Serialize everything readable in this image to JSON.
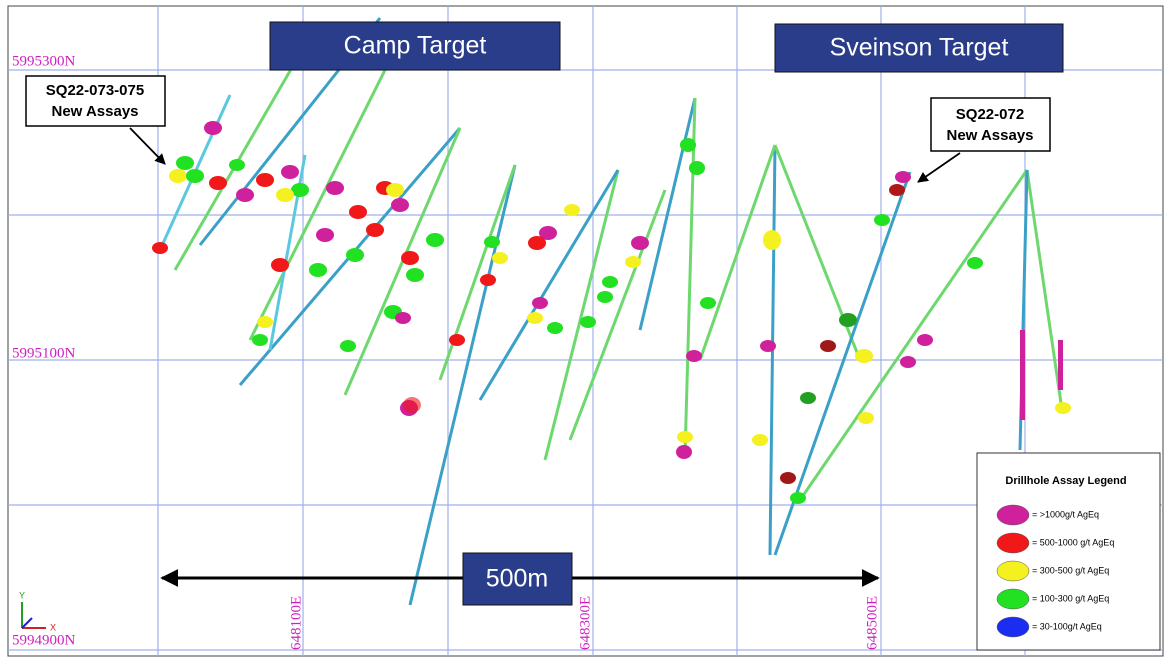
{
  "grid_labels": {
    "northings": [
      "5995300N",
      "5995100N",
      "5994900N"
    ],
    "eastings": [
      "648100E",
      "648300E",
      "648500E"
    ]
  },
  "targets": [
    "Camp Target",
    "Sveinson Target"
  ],
  "callouts": [
    {
      "title": "SQ22-073-075",
      "subtitle": "New Assays"
    },
    {
      "title": "SQ22-072",
      "subtitle": "New Assays"
    }
  ],
  "scale_bar": "500m",
  "axis_labels": [
    "Y",
    "X"
  ],
  "legend": {
    "title": "Drillhole Assay Legend",
    "items": [
      {
        "label": "= >1000g/t AgEq",
        "color": "#d0219d"
      },
      {
        "label": "= 500-1000 g/t AgEq",
        "color": "#f01818"
      },
      {
        "label": "= 300-500 g/t AgEq",
        "color": "#f5f020"
      },
      {
        "label": "= 100-300 g/t AgEq",
        "color": "#22e022"
      },
      {
        "label": "= 30-100g/t AgEq",
        "color": "#1a2df0"
      }
    ]
  }
}
